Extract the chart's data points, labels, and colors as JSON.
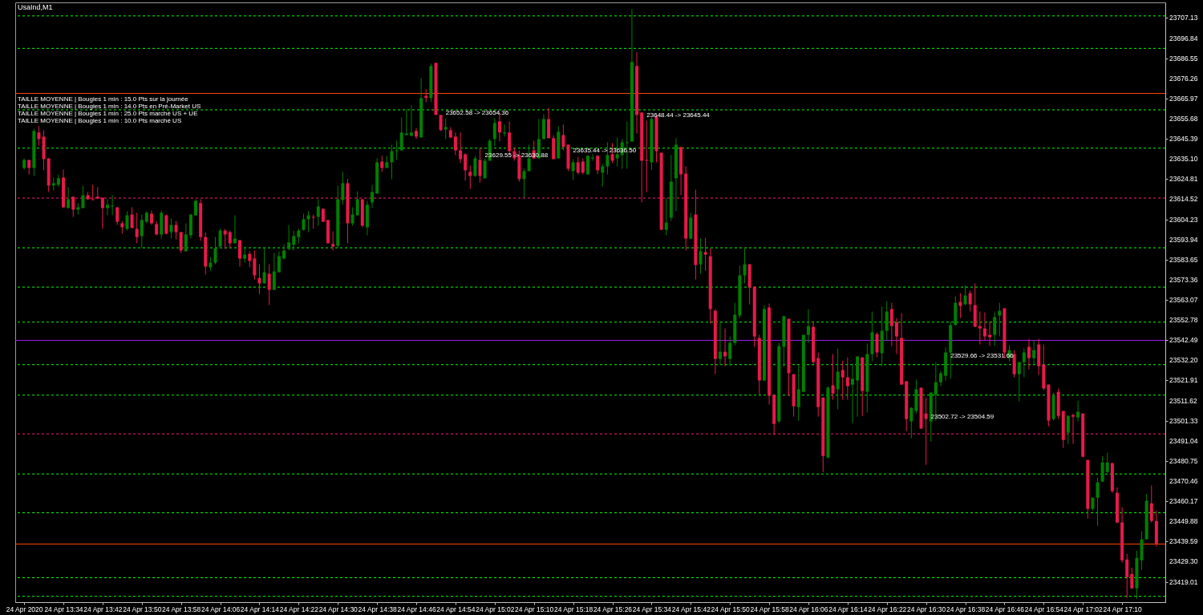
{
  "chart_data": {
    "type": "candlestick",
    "title": "UsaInd,M1",
    "annotations": [
      "TAILLE MOYENNE | Bougies 1 min : 15.0 Pts sur la journée",
      "TAILLE MOYENNE | Bougies 1 min : 14.0 Pts en Pré-Market US",
      "TAILLE MOYENNE | Bougies 1 min : 25.0 Pts marché US + UE",
      "TAILLE MOYENNE | Bougies 1 min : 10.0 Pts marché US",
      {
        "text": "23652.58 -> 23654.36",
        "x": "2020-04-24T14:52",
        "y": 23655.9
      },
      {
        "text": "23629.55 -> 23630.88",
        "x": "2020-04-24T15:00",
        "y": 23634.2
      },
      {
        "text": "23635.44 -> 23636.50",
        "x": "2020-04-24T15:18",
        "y": 23637
      },
      {
        "text": "23648.44 -> 23645.44",
        "x": "2020-04-24T15:33",
        "y": 23654.7
      },
      {
        "text": "23529.66 -> 23531.66",
        "x": "2020-04-24T16:35",
        "y": 23532
      },
      {
        "text": "23502.72 -> 23504.59",
        "x": "2020-04-24T16:31",
        "y": 23501.0
      }
    ],
    "x": [
      "2020-04-24T13:26",
      "2020-04-24T13:27",
      "2020-04-24T13:28",
      "2020-04-24T13:29",
      "2020-04-24T13:30",
      "2020-04-24T13:31",
      "2020-04-24T13:32",
      "2020-04-24T13:33",
      "2020-04-24T13:34",
      "2020-04-24T13:35",
      "2020-04-24T13:36",
      "2020-04-24T13:37",
      "2020-04-24T13:38",
      "2020-04-24T13:39",
      "2020-04-24T13:40",
      "2020-04-24T13:41",
      "2020-04-24T13:42",
      "2020-04-24T13:43",
      "2020-04-24T13:44",
      "2020-04-24T13:45",
      "2020-04-24T13:46",
      "2020-04-24T13:47",
      "2020-04-24T13:48",
      "2020-04-24T13:49",
      "2020-04-24T13:50",
      "2020-04-24T13:51",
      "2020-04-24T13:52",
      "2020-04-24T13:53",
      "2020-04-24T13:54",
      "2020-04-24T13:55",
      "2020-04-24T13:56",
      "2020-04-24T13:57",
      "2020-04-24T13:58",
      "2020-04-24T13:59",
      "2020-04-24T14:00",
      "2020-04-24T14:01",
      "2020-04-24T14:02",
      "2020-04-24T14:03",
      "2020-04-24T14:04",
      "2020-04-24T14:05",
      "2020-04-24T14:06",
      "2020-04-24T14:07",
      "2020-04-24T14:08",
      "2020-04-24T14:09",
      "2020-04-24T14:10",
      "2020-04-24T14:11",
      "2020-04-24T14:12",
      "2020-04-24T14:13",
      "2020-04-24T14:14",
      "2020-04-24T14:15",
      "2020-04-24T14:16",
      "2020-04-24T14:17",
      "2020-04-24T14:18",
      "2020-04-24T14:19",
      "2020-04-24T14:20",
      "2020-04-24T14:21",
      "2020-04-24T14:22",
      "2020-04-24T14:23",
      "2020-04-24T14:24",
      "2020-04-24T14:25",
      "2020-04-24T14:26",
      "2020-04-24T14:27",
      "2020-04-24T14:28",
      "2020-04-24T14:29",
      "2020-04-24T14:30",
      "2020-04-24T14:31",
      "2020-04-24T14:32",
      "2020-04-24T14:33",
      "2020-04-24T14:34",
      "2020-04-24T14:35",
      "2020-04-24T14:36",
      "2020-04-24T14:37",
      "2020-04-24T14:38",
      "2020-04-24T14:39",
      "2020-04-24T14:40",
      "2020-04-24T14:41",
      "2020-04-24T14:42",
      "2020-04-24T14:43",
      "2020-04-24T14:44",
      "2020-04-24T14:45",
      "2020-04-24T14:46",
      "2020-04-24T14:47",
      "2020-04-24T14:48",
      "2020-04-24T14:49",
      "2020-04-24T14:50",
      "2020-04-24T14:51",
      "2020-04-24T14:52",
      "2020-04-24T14:53",
      "2020-04-24T14:54",
      "2020-04-24T14:55",
      "2020-04-24T14:56",
      "2020-04-24T14:57",
      "2020-04-24T14:58",
      "2020-04-24T14:59",
      "2020-04-24T15:00",
      "2020-04-24T15:01",
      "2020-04-24T15:02",
      "2020-04-24T15:03",
      "2020-04-24T15:04",
      "2020-04-24T15:05",
      "2020-04-24T15:06",
      "2020-04-24T15:07",
      "2020-04-24T15:08",
      "2020-04-24T15:09",
      "2020-04-24T15:10",
      "2020-04-24T15:11",
      "2020-04-24T15:12",
      "2020-04-24T15:13",
      "2020-04-24T15:14",
      "2020-04-24T15:15",
      "2020-04-24T15:16",
      "2020-04-24T15:17",
      "2020-04-24T15:18",
      "2020-04-24T15:19",
      "2020-04-24T15:20",
      "2020-04-24T15:21",
      "2020-04-24T15:22",
      "2020-04-24T15:23",
      "2020-04-24T15:24",
      "2020-04-24T15:25",
      "2020-04-24T15:26",
      "2020-04-24T15:27",
      "2020-04-24T15:28",
      "2020-04-24T15:29",
      "2020-04-24T15:30",
      "2020-04-24T15:31",
      "2020-04-24T15:32",
      "2020-04-24T15:33",
      "2020-04-24T15:34",
      "2020-04-24T15:35",
      "2020-04-24T15:36",
      "2020-04-24T15:37",
      "2020-04-24T15:38",
      "2020-04-24T15:39",
      "2020-04-24T15:40",
      "2020-04-24T15:41",
      "2020-04-24T15:42",
      "2020-04-24T15:43",
      "2020-04-24T15:44",
      "2020-04-24T15:45",
      "2020-04-24T15:46",
      "2020-04-24T15:47",
      "2020-04-24T15:48",
      "2020-04-24T15:49",
      "2020-04-24T15:50",
      "2020-04-24T15:51",
      "2020-04-24T15:52",
      "2020-04-24T15:53",
      "2020-04-24T15:54",
      "2020-04-24T15:55",
      "2020-04-24T15:56",
      "2020-04-24T15:57",
      "2020-04-24T15:58",
      "2020-04-24T15:59",
      "2020-04-24T16:00",
      "2020-04-24T16:01",
      "2020-04-24T16:02",
      "2020-04-24T16:03",
      "2020-04-24T16:04",
      "2020-04-24T16:05",
      "2020-04-24T16:06",
      "2020-04-24T16:07",
      "2020-04-24T16:08",
      "2020-04-24T16:09",
      "2020-04-24T16:10",
      "2020-04-24T16:11",
      "2020-04-24T16:12",
      "2020-04-24T16:13",
      "2020-04-24T16:14",
      "2020-04-24T16:15",
      "2020-04-24T16:16",
      "2020-04-24T16:17",
      "2020-04-24T16:18",
      "2020-04-24T16:19",
      "2020-04-24T16:20",
      "2020-04-24T16:21",
      "2020-04-24T16:22",
      "2020-04-24T16:23",
      "2020-04-24T16:24",
      "2020-04-24T16:25",
      "2020-04-24T16:26",
      "2020-04-24T16:27",
      "2020-04-24T16:28",
      "2020-04-24T16:29",
      "2020-04-24T16:30",
      "2020-04-24T16:31",
      "2020-04-24T16:32",
      "2020-04-24T16:33",
      "2020-04-24T16:34",
      "2020-04-24T16:35",
      "2020-04-24T16:36",
      "2020-04-24T16:37",
      "2020-04-24T16:38",
      "2020-04-24T16:39",
      "2020-04-24T16:40",
      "2020-04-24T16:41",
      "2020-04-24T16:42",
      "2020-04-24T16:43",
      "2020-04-24T16:44",
      "2020-04-24T16:45",
      "2020-04-24T16:46",
      "2020-04-24T16:47",
      "2020-04-24T16:48",
      "2020-04-24T16:49",
      "2020-04-24T16:50",
      "2020-04-24T16:51",
      "2020-04-24T16:52",
      "2020-04-24T16:53",
      "2020-04-24T16:54",
      "2020-04-24T16:55",
      "2020-04-24T16:56",
      "2020-04-24T16:57",
      "2020-04-24T16:58",
      "2020-04-24T16:59",
      "2020-04-24T17:00",
      "2020-04-24T17:01",
      "2020-04-24T17:02",
      "2020-04-24T17:03",
      "2020-04-24T17:04",
      "2020-04-24T17:05",
      "2020-04-24T17:06",
      "2020-04-24T17:07",
      "2020-04-24T17:08",
      "2020-04-24T17:09",
      "2020-04-24T17:10",
      "2020-04-24T17:11",
      "2020-04-24T17:12",
      "2020-04-24T17:13",
      "2020-04-24T17:14",
      "2020-04-24T17:15",
      "2020-04-24T17:16",
      "2020-04-24T17:17"
    ],
    "ohlc": [
      [
        23630.5,
        23635.4,
        23629.7,
        23634.6
      ],
      [
        23634.6,
        23634.6,
        23627.2,
        23630.5
      ],
      [
        23630.5,
        23650.6,
        23626.4,
        23649.4
      ],
      [
        23648.6,
        23651.8,
        23642.0,
        23645.3
      ],
      [
        23646.5,
        23649.8,
        23629.3,
        23635.0
      ],
      [
        23635.4,
        23635.4,
        23618.2,
        23621.5
      ],
      [
        23621.5,
        23625.6,
        23619.0,
        23622.7
      ],
      [
        23621.9,
        23627.2,
        23620.7,
        23625.2
      ],
      [
        23625.6,
        23629.7,
        23610.0,
        23610.4
      ],
      [
        23610.0,
        23620.7,
        23610.0,
        23614.5
      ],
      [
        23615.8,
        23615.8,
        23605.5,
        23609.2
      ],
      [
        23609.2,
        23612.5,
        23606.7,
        23610.4
      ],
      [
        23610.0,
        23621.5,
        23610.0,
        23616.6
      ],
      [
        23616.6,
        23618.2,
        23614.1,
        23614.5
      ],
      [
        23614.5,
        23621.9,
        23614.1,
        23614.1
      ],
      [
        23615.8,
        23620.7,
        23614.5,
        23614.9
      ],
      [
        23615.3,
        23615.3,
        23599.4,
        23610.0
      ],
      [
        23610.0,
        23614.5,
        23606.3,
        23611.7
      ],
      [
        23610.8,
        23616.6,
        23606.3,
        23611.2
      ],
      [
        23610.4,
        23610.4,
        23601.4,
        23603.0
      ],
      [
        23602.2,
        23603.4,
        23596.9,
        23600.2
      ],
      [
        23599.4,
        23608.4,
        23598.5,
        23606.3
      ],
      [
        23606.7,
        23610.4,
        23599.8,
        23599.8
      ],
      [
        23599.4,
        23607.6,
        23592.0,
        23595.2
      ],
      [
        23595.7,
        23606.7,
        23589.5,
        23603.9
      ],
      [
        23603.0,
        23608.4,
        23602.2,
        23607.6
      ],
      [
        23607.1,
        23608.8,
        23601.4,
        23602.2
      ],
      [
        23601.8,
        23603.4,
        23596.1,
        23596.5
      ],
      [
        23596.5,
        23608.8,
        23594.4,
        23607.6
      ],
      [
        23606.3,
        23606.7,
        23596.5,
        23596.9
      ],
      [
        23597.7,
        23604.7,
        23594.4,
        23601.4
      ],
      [
        23601.4,
        23603.4,
        23594.0,
        23597.7
      ],
      [
        23597.7,
        23597.7,
        23587.1,
        23588.3
      ],
      [
        23587.9,
        23602.2,
        23587.9,
        23596.5
      ],
      [
        23596.1,
        23606.7,
        23594.4,
        23606.7
      ],
      [
        23606.3,
        23614.5,
        23606.3,
        23613.7
      ],
      [
        23612.5,
        23614.5,
        23593.2,
        23595.2
      ],
      [
        23595.2,
        23597.7,
        23576.0,
        23580.1
      ],
      [
        23579.7,
        23585.0,
        23578.0,
        23582.1
      ],
      [
        23582.1,
        23595.2,
        23581.3,
        23589.5
      ],
      [
        23590.3,
        23599.4,
        23590.3,
        23598.5
      ],
      [
        23598.5,
        23599.4,
        23589.1,
        23596.5
      ],
      [
        23597.7,
        23598.5,
        23589.5,
        23592.0
      ],
      [
        23592.0,
        23606.3,
        23592.0,
        23594.4
      ],
      [
        23593.6,
        23593.6,
        23580.1,
        23584.2
      ],
      [
        23584.2,
        23590.3,
        23582.1,
        23586.2
      ],
      [
        23586.6,
        23587.9,
        23579.7,
        23583.0
      ],
      [
        23584.2,
        23588.3,
        23573.5,
        23575.6
      ],
      [
        23574.3,
        23581.3,
        23566.1,
        23571.5
      ],
      [
        23571.5,
        23589.5,
        23571.5,
        23577.2
      ],
      [
        23576.4,
        23581.3,
        23560.4,
        23568.2
      ],
      [
        23568.2,
        23587.1,
        23568.2,
        23577.6
      ],
      [
        23577.2,
        23587.9,
        23577.2,
        23585.4
      ],
      [
        23584.2,
        23591.6,
        23583.8,
        23588.3
      ],
      [
        23589.1,
        23601.4,
        23588.3,
        23592.4
      ],
      [
        23591.2,
        23598.5,
        23588.3,
        23595.7
      ],
      [
        23595.2,
        23599.4,
        23592.0,
        23598.5
      ],
      [
        23598.9,
        23607.1,
        23598.5,
        23604.3
      ],
      [
        23604.3,
        23608.4,
        23597.7,
        23606.3
      ],
      [
        23605.5,
        23606.7,
        23599.4,
        23605.1
      ],
      [
        23605.5,
        23614.5,
        23601.0,
        23610.8
      ],
      [
        23609.6,
        23610.0,
        23603.0,
        23603.0
      ],
      [
        23603.9,
        23603.9,
        23592.0,
        23592.0
      ],
      [
        23591.6,
        23598.1,
        23588.3,
        23590.3
      ],
      [
        23590.7,
        23621.5,
        23589.5,
        23614.5
      ],
      [
        23614.1,
        23628.5,
        23611.7,
        23622.7
      ],
      [
        23622.7,
        23624.8,
        23592.0,
        23602.2
      ],
      [
        23602.2,
        23610.4,
        23601.0,
        23606.7
      ],
      [
        23606.3,
        23618.6,
        23606.3,
        23614.5
      ],
      [
        23614.5,
        23614.5,
        23600.2,
        23601.0
      ],
      [
        23600.2,
        23613.7,
        23596.1,
        23611.7
      ],
      [
        23612.9,
        23621.9,
        23610.0,
        23618.2
      ],
      [
        23617.4,
        23635.4,
        23617.4,
        23633.4
      ],
      [
        23633.8,
        23636.7,
        23628.5,
        23630.5
      ],
      [
        23630.5,
        23636.7,
        23630.5,
        23633.4
      ],
      [
        23633.4,
        23642.4,
        23624.8,
        23639.1
      ],
      [
        23639.1,
        23644.4,
        23634.6,
        23639.5
      ],
      [
        23639.5,
        23656.3,
        23639.5,
        23648.6
      ],
      [
        23647.3,
        23660.4,
        23647.3,
        23648.1
      ],
      [
        23646.9,
        23662.5,
        23646.9,
        23648.6
      ],
      [
        23649.4,
        23651.0,
        23645.3,
        23646.5
      ],
      [
        23646.1,
        23676.4,
        23646.1,
        23666.2
      ],
      [
        23667.4,
        23670.7,
        23664.1,
        23666.2
      ],
      [
        23666.2,
        23683.8,
        23664.1,
        23682.6
      ],
      [
        23684.2,
        23684.2,
        23657.6,
        23657.6
      ],
      [
        23657.6,
        23657.6,
        23649.4,
        23649.8
      ],
      [
        23650.2,
        23655.9,
        23645.3,
        23651.4
      ],
      [
        23649.8,
        23651.4,
        23645.7,
        23646.1
      ],
      [
        23646.5,
        23648.6,
        23637.1,
        23639.5
      ],
      [
        23639.5,
        23648.6,
        23633.0,
        23635.0
      ],
      [
        23637.5,
        23637.9,
        23624.0,
        23629.3
      ],
      [
        23628.5,
        23631.7,
        23619.8,
        23626.4
      ],
      [
        23626.4,
        23636.7,
        23626.0,
        23635.4
      ],
      [
        23634.6,
        23640.8,
        23623.1,
        23626.4
      ],
      [
        23625.2,
        23635.4,
        23625.2,
        23634.2
      ],
      [
        23634.2,
        23645.3,
        23634.2,
        23644.4
      ],
      [
        23645.3,
        23655.9,
        23641.6,
        23653.5
      ],
      [
        23654.3,
        23658.8,
        23644.0,
        23648.6
      ],
      [
        23648.1,
        23652.7,
        23646.5,
        23648.6
      ],
      [
        23648.6,
        23654.3,
        23637.1,
        23639.1
      ],
      [
        23639.1,
        23640.8,
        23634.2,
        23635.4
      ],
      [
        23637.1,
        23639.5,
        23623.5,
        23624.8
      ],
      [
        23624.8,
        23630.1,
        23615.3,
        23628.9
      ],
      [
        23628.9,
        23642.4,
        23628.9,
        23635.4
      ],
      [
        23639.5,
        23644.4,
        23635.0,
        23635.4
      ],
      [
        23635.4,
        23655.5,
        23635.4,
        23645.3
      ],
      [
        23645.3,
        23658.0,
        23645.3,
        23655.5
      ],
      [
        23655.5,
        23661.3,
        23645.7,
        23645.7
      ],
      [
        23645.7,
        23647.3,
        23635.0,
        23635.0
      ],
      [
        23635.4,
        23651.8,
        23635.4,
        23649.0
      ],
      [
        23647.3,
        23652.7,
        23639.5,
        23641.2
      ],
      [
        23642.4,
        23642.4,
        23628.9,
        23630.1
      ],
      [
        23628.9,
        23635.0,
        23624.4,
        23633.4
      ],
      [
        23633.4,
        23636.2,
        23627.2,
        23628.1
      ],
      [
        23633.8,
        23635.4,
        23627.2,
        23628.1
      ],
      [
        23627.2,
        23637.1,
        23627.2,
        23636.7
      ],
      [
        23635.4,
        23637.5,
        23634.2,
        23635.8
      ],
      [
        23636.7,
        23637.1,
        23627.2,
        23629.3
      ],
      [
        23628.1,
        23632.6,
        23621.1,
        23631.3
      ],
      [
        23631.3,
        23643.6,
        23627.2,
        23637.1
      ],
      [
        23637.5,
        23643.2,
        23633.0,
        23634.2
      ],
      [
        23635.4,
        23646.1,
        23631.3,
        23637.5
      ],
      [
        23637.1,
        23645.3,
        23630.1,
        23643.6
      ],
      [
        23643.2,
        23654.3,
        23630.1,
        23643.6
      ],
      [
        23644.0,
        23711.7,
        23644.0,
        23684.6
      ],
      [
        23682.6,
        23689.6,
        23648.1,
        23657.6
      ],
      [
        23658.8,
        23658.8,
        23612.9,
        23634.2
      ],
      [
        23634.6,
        23654.7,
        23618.2,
        23634.2
      ],
      [
        23633.4,
        23656.3,
        23629.3,
        23655.5
      ],
      [
        23656.8,
        23657.6,
        23633.4,
        23639.1
      ],
      [
        23638.3,
        23638.3,
        23598.9,
        23598.9
      ],
      [
        23598.9,
        23615.3,
        23596.1,
        23602.6
      ],
      [
        23605.1,
        23637.1,
        23603.4,
        23623.5
      ],
      [
        23625.2,
        23645.7,
        23608.4,
        23642.4
      ],
      [
        23641.2,
        23641.2,
        23616.6,
        23627.2
      ],
      [
        23627.6,
        23631.3,
        23588.3,
        23594.4
      ],
      [
        23594.4,
        23607.6,
        23594.0,
        23605.1
      ],
      [
        23606.7,
        23619.4,
        23573.5,
        23580.9
      ],
      [
        23581.3,
        23594.4,
        23576.4,
        23587.9
      ],
      [
        23587.5,
        23594.8,
        23578.0,
        23586.2
      ],
      [
        23585.4,
        23589.5,
        23551.0,
        23558.4
      ],
      [
        23557.5,
        23558.4,
        23525.1,
        23532.9
      ],
      [
        23532.9,
        23552.2,
        23530.1,
        23536.6
      ],
      [
        23536.6,
        23548.5,
        23529.2,
        23534.2
      ],
      [
        23532.9,
        23544.4,
        23529.2,
        23541.1
      ],
      [
        23541.1,
        23561.6,
        23539.9,
        23555.5
      ],
      [
        23555.1,
        23580.5,
        23553.8,
        23575.6
      ],
      [
        23575.6,
        23589.5,
        23571.5,
        23581.3
      ],
      [
        23581.3,
        23581.3,
        23560.8,
        23569.4
      ],
      [
        23569.8,
        23569.8,
        23539.1,
        23544.4
      ],
      [
        23543.6,
        23545.2,
        23514.9,
        23521.9
      ],
      [
        23521.9,
        23560.4,
        23521.5,
        23558.4
      ],
      [
        23559.2,
        23561.2,
        23509.6,
        23514.1
      ],
      [
        23514.5,
        23514.5,
        23494.0,
        23499.7
      ],
      [
        23501.0,
        23541.1,
        23500.1,
        23539.5
      ],
      [
        23539.1,
        23555.1,
        23528.8,
        23554.7
      ],
      [
        23553.4,
        23553.4,
        23514.1,
        23525.6
      ],
      [
        23525.1,
        23525.1,
        23503.4,
        23508.7
      ],
      [
        23508.3,
        23530.1,
        23501.4,
        23517.4
      ],
      [
        23516.1,
        23545.2,
        23516.1,
        23545.2
      ],
      [
        23545.2,
        23558.4,
        23541.1,
        23549.7
      ],
      [
        23549.3,
        23552.2,
        23530.5,
        23531.3
      ],
      [
        23533.3,
        23536.2,
        23503.4,
        23508.3
      ],
      [
        23513.2,
        23513.2,
        23475.1,
        23483.3
      ],
      [
        23482.5,
        23519.0,
        23482.1,
        23518.2
      ],
      [
        23519.4,
        23535.4,
        23512.0,
        23515.3
      ],
      [
        23517.4,
        23538.3,
        23507.1,
        23526.4
      ],
      [
        23527.2,
        23532.1,
        23512.0,
        23523.5
      ],
      [
        23523.5,
        23533.7,
        23512.0,
        23519.0
      ],
      [
        23519.8,
        23530.5,
        23500.1,
        23522.7
      ],
      [
        23521.9,
        23534.2,
        23503.4,
        23534.2
      ],
      [
        23533.7,
        23533.7,
        23503.8,
        23516.5
      ],
      [
        23516.1,
        23540.7,
        23505.5,
        23535.4
      ],
      [
        23535.4,
        23557.1,
        23531.7,
        23546.5
      ],
      [
        23545.6,
        23546.5,
        23533.7,
        23536.2
      ],
      [
        23535.8,
        23559.6,
        23529.2,
        23547.3
      ],
      [
        23547.3,
        23562.4,
        23542.4,
        23557.1
      ],
      [
        23558.4,
        23561.6,
        23539.5,
        23549.7
      ],
      [
        23551.8,
        23553.8,
        23535.4,
        23544.4
      ],
      [
        23543.6,
        23556.3,
        23519.8,
        23519.8
      ],
      [
        23521.5,
        23521.5,
        23496.0,
        23502.2
      ],
      [
        23501.0,
        23508.3,
        23492.3,
        23507.9
      ],
      [
        23506.3,
        23522.3,
        23505.0,
        23517.4
      ],
      [
        23518.2,
        23518.2,
        23497.3,
        23497.3
      ],
      [
        23505.0,
        23513.2,
        23478.8,
        23502.2
      ],
      [
        23501.0,
        23515.7,
        23490.7,
        23515.7
      ],
      [
        23514.5,
        23531.3,
        23501.4,
        23521.0
      ],
      [
        23521.0,
        23526.8,
        23519.0,
        23525.6
      ],
      [
        23524.3,
        23538.7,
        23521.9,
        23536.2
      ],
      [
        23536.2,
        23551.8,
        23522.7,
        23550.2
      ],
      [
        23550.2,
        23564.9,
        23550.2,
        23561.6
      ],
      [
        23562.0,
        23566.5,
        23553.8,
        23560.0
      ],
      [
        23560.8,
        23570.6,
        23560.4,
        23565.3
      ],
      [
        23566.5,
        23567.8,
        23557.1,
        23560.8
      ],
      [
        23560.4,
        23571.5,
        23549.3,
        23549.3
      ],
      [
        23549.7,
        23557.1,
        23540.3,
        23548.5
      ],
      [
        23548.5,
        23556.7,
        23542.4,
        23544.4
      ],
      [
        23545.2,
        23552.2,
        23539.5,
        23544.0
      ],
      [
        23545.2,
        23556.7,
        23539.5,
        23554.3
      ],
      [
        23555.1,
        23561.6,
        23544.4,
        23557.5
      ],
      [
        23558.8,
        23558.8,
        23533.3,
        23536.2
      ],
      [
        23533.3,
        23539.9,
        23531.7,
        23537.4
      ],
      [
        23535.4,
        23537.4,
        23523.5,
        23525.1
      ],
      [
        23525.1,
        23531.3,
        23511.2,
        23531.3
      ],
      [
        23531.3,
        23538.3,
        23523.5,
        23536.2
      ],
      [
        23539.1,
        23543.2,
        23527.6,
        23533.3
      ],
      [
        23533.3,
        23542.4,
        23529.6,
        23537.4
      ],
      [
        23540.3,
        23543.2,
        23524.7,
        23529.2
      ],
      [
        23530.1,
        23540.3,
        23516.9,
        23517.8
      ],
      [
        23519.8,
        23519.8,
        23498.5,
        23501.4
      ],
      [
        23502.2,
        23515.7,
        23501.4,
        23514.1
      ],
      [
        23516.1,
        23517.8,
        23502.2,
        23503.8
      ],
      [
        23506.3,
        23506.3,
        23487.4,
        23491.5
      ],
      [
        23495.2,
        23504.2,
        23489.5,
        23503.8
      ],
      [
        23504.2,
        23505.0,
        23489.5,
        23503.4
      ],
      [
        23503.0,
        23511.6,
        23501.0,
        23505.9
      ],
      [
        23505.0,
        23505.0,
        23482.9,
        23482.9
      ],
      [
        23481.3,
        23481.3,
        23451.3,
        23456.3
      ],
      [
        23456.3,
        23462.0,
        23455.4,
        23462.0
      ],
      [
        23462.0,
        23472.2,
        23447.6,
        23469.8
      ],
      [
        23470.2,
        23483.3,
        23470.2,
        23480.0
      ],
      [
        23475.1,
        23485.0,
        23474.7,
        23480.0
      ],
      [
        23479.6,
        23480.0,
        23464.5,
        23465.3
      ],
      [
        23464.5,
        23467.3,
        23448.9,
        23449.3
      ],
      [
        23449.3,
        23457.1,
        23428.8,
        23430.0
      ],
      [
        23430.4,
        23433.3,
        23410.8,
        23421.4
      ],
      [
        23423.0,
        23426.3,
        23415.3,
        23415.7
      ],
      [
        23415.7,
        23434.9,
        23410.3,
        23431.2
      ],
      [
        23430.0,
        23444.8,
        23425.1,
        23440.7
      ],
      [
        23440.7,
        23464.0,
        23440.7,
        23460.4
      ],
      [
        23459.1,
        23468.2,
        23449.3,
        23450.1
      ],
      [
        23450.1,
        23455.4,
        23437.0,
        23438.6
      ]
    ],
    "colors": [
      "#008000",
      "#e8194a",
      "#008000",
      "#e8194a",
      "#e8194a",
      "#e8194a",
      "#008000",
      "#008000",
      "#e8194a",
      "#008000",
      "#e8194a",
      "#008000",
      "#008000",
      "#e8194a",
      "#e8194a",
      "#e8194a",
      "#e8194a",
      "#008000",
      "#008000",
      "#e8194a",
      "#e8194a",
      "#008000",
      "#e8194a",
      "#e8194a",
      "#008000",
      "#008000",
      "#e8194a",
      "#e8194a",
      "#008000",
      "#e8194a",
      "#008000",
      "#e8194a",
      "#e8194a",
      "#008000",
      "#008000",
      "#008000",
      "#e8194a",
      "#e8194a",
      "#008000",
      "#008000",
      "#008000",
      "#e8194a",
      "#e8194a",
      "#008000",
      "#e8194a",
      "#008000",
      "#e8194a",
      "#e8194a",
      "#e8194a",
      "#008000",
      "#e8194a",
      "#008000",
      "#008000",
      "#008000",
      "#008000",
      "#008000",
      "#008000",
      "#008000",
      "#008000",
      "#e8194a",
      "#008000",
      "#e8194a",
      "#e8194a",
      "#e8194a",
      "#008000",
      "#008000",
      "#e8194a",
      "#008000",
      "#008000",
      "#e8194a",
      "#008000",
      "#008000",
      "#008000",
      "#e8194a",
      "#008000",
      "#008000",
      "#008000",
      "#008000",
      "#008000",
      "#008000",
      "#e8194a",
      "#008000",
      "#e8194a",
      "#008000",
      "#e8194a",
      "#e8194a",
      "#008000",
      "#e8194a",
      "#e8194a",
      "#e8194a",
      "#e8194a",
      "#e8194a",
      "#008000",
      "#e8194a",
      "#008000",
      "#008000",
      "#008000",
      "#e8194a",
      "#008000",
      "#e8194a",
      "#e8194a",
      "#e8194a",
      "#008000",
      "#008000",
      "#e8194a",
      "#008000",
      "#008000",
      "#e8194a",
      "#e8194a",
      "#008000",
      "#e8194a",
      "#e8194a",
      "#008000",
      "#e8194a",
      "#e8194a",
      "#008000",
      "#008000",
      "#e8194a",
      "#008000",
      "#008000",
      "#e8194a",
      "#008000",
      "#008000",
      "#008000",
      "#008000",
      "#e8194a",
      "#e8194a",
      "#e8194a",
      "#008000",
      "#e8194a",
      "#e8194a",
      "#008000",
      "#008000",
      "#008000",
      "#e8194a",
      "#e8194a",
      "#008000",
      "#e8194a",
      "#008000",
      "#e8194a",
      "#e8194a",
      "#e8194a",
      "#008000",
      "#e8194a",
      "#008000",
      "#008000",
      "#008000",
      "#008000",
      "#e8194a",
      "#e8194a",
      "#e8194a",
      "#008000",
      "#e8194a",
      "#e8194a",
      "#008000",
      "#008000",
      "#e8194a",
      "#e8194a",
      "#008000",
      "#008000",
      "#008000",
      "#e8194a",
      "#e8194a",
      "#e8194a",
      "#008000",
      "#e8194a",
      "#008000",
      "#e8194a",
      "#e8194a",
      "#008000",
      "#008000",
      "#e8194a",
      "#008000",
      "#008000",
      "#e8194a",
      "#008000",
      "#008000",
      "#e8194a",
      "#e8194a",
      "#e8194a",
      "#e8194a",
      "#008000",
      "#008000",
      "#e8194a",
      "#e8194a",
      "#008000",
      "#008000",
      "#008000",
      "#008000",
      "#008000",
      "#008000",
      "#e8194a",
      "#008000",
      "#e8194a",
      "#e8194a",
      "#e8194a",
      "#e8194a",
      "#e8194a",
      "#008000",
      "#008000",
      "#e8194a",
      "#008000",
      "#e8194a",
      "#008000",
      "#008000",
      "#e8194a",
      "#008000",
      "#e8194a",
      "#e8194a",
      "#e8194a",
      "#008000",
      "#e8194a",
      "#e8194a",
      "#008000",
      "#e8194a",
      "#008000",
      "#e8194a",
      "#e8194a",
      "#008000",
      "#008000",
      "#008000",
      "#008000",
      "#e8194a",
      "#e8194a",
      "#e8194a",
      "#e8194a",
      "#e8194a",
      "#008000",
      "#008000",
      "#008000",
      "#e8194a",
      "#e8194a"
    ],
    "xlim": [
      "2020-04-24T13:25",
      "2020-04-24T17:18"
    ],
    "xticks": [
      {
        "value": "2020-04-24T13:26",
        "label": "24 Apr 2020"
      },
      {
        "value": "2020-04-24T13:34",
        "label": "24 Apr 13:34"
      },
      {
        "value": "2020-04-24T13:42",
        "label": "24 Apr 13:42"
      },
      {
        "value": "2020-04-24T13:50",
        "label": "24 Apr 13:50"
      },
      {
        "value": "2020-04-24T13:58",
        "label": "24 Apr 13:58"
      },
      {
        "value": "2020-04-24T14:06",
        "label": "24 Apr 14:06"
      },
      {
        "value": "2020-04-24T14:14",
        "label": "24 Apr 14:14"
      },
      {
        "value": "2020-04-24T14:22",
        "label": "24 Apr 14:22"
      },
      {
        "value": "2020-04-24T14:30",
        "label": "24 Apr 14:30"
      },
      {
        "value": "2020-04-24T14:38",
        "label": "24 Apr 14:38"
      },
      {
        "value": "2020-04-24T14:46",
        "label": "24 Apr 14:46"
      },
      {
        "value": "2020-04-24T14:54",
        "label": "24 Apr 14:54"
      },
      {
        "value": "2020-04-24T15:02",
        "label": "24 Apr 15:02"
      },
      {
        "value": "2020-04-24T15:10",
        "label": "24 Apr 15:10"
      },
      {
        "value": "2020-04-24T15:18",
        "label": "24 Apr 15:18"
      },
      {
        "value": "2020-04-24T15:26",
        "label": "24 Apr 15:26"
      },
      {
        "value": "2020-04-24T15:34",
        "label": "24 Apr 15:34"
      },
      {
        "value": "2020-04-24T15:42",
        "label": "24 Apr 15:42"
      },
      {
        "value": "2020-04-24T15:50",
        "label": "24 Apr 15:50"
      },
      {
        "value": "2020-04-24T15:58",
        "label": "24 Apr 15:58"
      },
      {
        "value": "2020-04-24T16:06",
        "label": "24 Apr 16:06"
      },
      {
        "value": "2020-04-24T16:14",
        "label": "24 Apr 16:14"
      },
      {
        "value": "2020-04-24T16:22",
        "label": "24 Apr 16:22"
      },
      {
        "value": "2020-04-24T16:30",
        "label": "24 Apr 16:30"
      },
      {
        "value": "2020-04-24T16:38",
        "label": "24 Apr 16:38"
      },
      {
        "value": "2020-04-24T16:46",
        "label": "24 Apr 16:46"
      },
      {
        "value": "2020-04-24T16:54",
        "label": "24 Apr 16:54"
      },
      {
        "value": "2020-04-24T17:02",
        "label": "24 Apr 17:02"
      },
      {
        "value": "2020-04-24T17:10",
        "label": "24 Apr 17:10"
      }
    ],
    "ylim": [
      23408.6,
      23715.1
    ],
    "yticks": [
      23419.01,
      {
        "value": 23429.3,
        "label": "23429.30"
      },
      23439.59,
      23449.88,
      23460.17,
      23470.46,
      23480.75,
      23491.04,
      23501.33,
      23511.62,
      23521.91,
      {
        "value": 23532.2,
        "label": "23532.20"
      },
      23542.49,
      23552.78,
      23563.07,
      23573.36,
      23583.65,
      23593.94,
      23604.23,
      23614.52,
      23624.81,
      {
        "value": 23635.1,
        "label": "23635.10"
      },
      23645.39,
      23655.68,
      23665.97,
      23676.26,
      23686.55,
      23696.84,
      23707.13
    ],
    "ref_lines": [
      {
        "axis": "y",
        "value": 23708.2,
        "color": "#00ff00",
        "line_style": "dashed"
      },
      {
        "axis": "y",
        "value": 23691.6,
        "color": "#00ff00",
        "line_style": "dashed"
      },
      {
        "axis": "y",
        "value": 23668.6,
        "color": "#ff4500",
        "line_style": "solid"
      },
      {
        "axis": "y",
        "value": 23660.2,
        "color": "#00ff00",
        "line_style": "dashed"
      },
      {
        "axis": "y",
        "value": 23640.6,
        "color": "#00ff00",
        "line_style": "dashed"
      },
      {
        "axis": "y",
        "value": 23615.1,
        "color": "#ff1a75",
        "line_style": "dashed"
      },
      {
        "axis": "y",
        "value": 23589.7,
        "color": "#00ff00",
        "line_style": "dashed"
      },
      {
        "axis": "y",
        "value": 23569.6,
        "color": "#00ff00",
        "line_style": "dashed"
      },
      {
        "axis": "y",
        "value": 23551.7,
        "color": "#00ff00",
        "line_style": "dashed"
      },
      {
        "axis": "y",
        "value": 23542.4,
        "color": "#a020f0",
        "line_style": "solid"
      },
      {
        "axis": "y",
        "value": 23530.0,
        "color": "#00ff00",
        "line_style": "dashed"
      },
      {
        "axis": "y",
        "value": 23514.4,
        "color": "#00ff00",
        "line_style": "dashed"
      },
      {
        "axis": "y",
        "value": 23494.6,
        "color": "#ff1a75",
        "line_style": "dashed"
      },
      {
        "axis": "y",
        "value": 23474.1,
        "color": "#00ff00",
        "line_style": "dashed"
      },
      {
        "axis": "y",
        "value": 23454.3,
        "color": "#00ff00",
        "line_style": "dashed"
      },
      {
        "axis": "y",
        "value": 23438.3,
        "color": "#ff4500",
        "line_style": "solid"
      },
      {
        "axis": "y",
        "value": 23421.1,
        "color": "#00ff00",
        "line_style": "dashed"
      },
      {
        "axis": "y",
        "value": 23411.6,
        "color": "#00ff00",
        "line_style": "dashed"
      }
    ]
  }
}
